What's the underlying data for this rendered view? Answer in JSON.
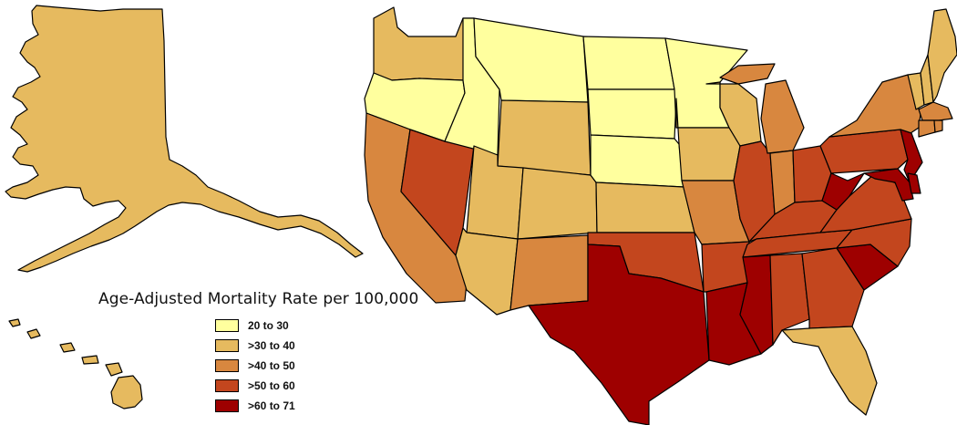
{
  "legend": {
    "title": "Age-Adjusted Mortality Rate per 100,000",
    "bins": [
      {
        "label": "20 to 30",
        "color": "#FFFF9E"
      },
      {
        "label": ">30 to 40",
        "color": "#E6BA5F"
      },
      {
        "label": ">40 to 50",
        "color": "#D8873F"
      },
      {
        "label": ">50 to 60",
        "color": "#C3461E"
      },
      {
        "label": ">60 to 71",
        "color": "#9E0000"
      }
    ]
  },
  "states": [
    {
      "id": "AK",
      "bin": 1
    },
    {
      "id": "HI",
      "bin": 1
    },
    {
      "id": "WA",
      "bin": 1
    },
    {
      "id": "OR",
      "bin": 0
    },
    {
      "id": "CA",
      "bin": 2
    },
    {
      "id": "NV",
      "bin": 3
    },
    {
      "id": "ID",
      "bin": 0
    },
    {
      "id": "MT",
      "bin": 0
    },
    {
      "id": "WY",
      "bin": 1
    },
    {
      "id": "UT",
      "bin": 1
    },
    {
      "id": "AZ",
      "bin": 1
    },
    {
      "id": "CO",
      "bin": 1
    },
    {
      "id": "NM",
      "bin": 2
    },
    {
      "id": "ND",
      "bin": 0
    },
    {
      "id": "SD",
      "bin": 0
    },
    {
      "id": "NE",
      "bin": 0
    },
    {
      "id": "KS",
      "bin": 1
    },
    {
      "id": "OK",
      "bin": 3
    },
    {
      "id": "TX",
      "bin": 4
    },
    {
      "id": "MN",
      "bin": 0
    },
    {
      "id": "IA",
      "bin": 1
    },
    {
      "id": "MO",
      "bin": 2
    },
    {
      "id": "AR",
      "bin": 3
    },
    {
      "id": "LA",
      "bin": 4
    },
    {
      "id": "WI",
      "bin": 1
    },
    {
      "id": "IL",
      "bin": 3
    },
    {
      "id": "MI",
      "bin": 2
    },
    {
      "id": "IN",
      "bin": 2
    },
    {
      "id": "OH",
      "bin": 3
    },
    {
      "id": "KY",
      "bin": 3
    },
    {
      "id": "TN",
      "bin": 3
    },
    {
      "id": "MS",
      "bin": 4
    },
    {
      "id": "AL",
      "bin": 3
    },
    {
      "id": "GA",
      "bin": 3
    },
    {
      "id": "FL",
      "bin": 1
    },
    {
      "id": "SC",
      "bin": 4
    },
    {
      "id": "NC",
      "bin": 3
    },
    {
      "id": "VA",
      "bin": 3
    },
    {
      "id": "WV",
      "bin": 4
    },
    {
      "id": "PA",
      "bin": 3
    },
    {
      "id": "NY",
      "bin": 2
    },
    {
      "id": "NJ",
      "bin": 4
    },
    {
      "id": "DE",
      "bin": 4
    },
    {
      "id": "MD",
      "bin": 4
    },
    {
      "id": "VT",
      "bin": 1
    },
    {
      "id": "NH",
      "bin": 1
    },
    {
      "id": "ME",
      "bin": 1
    },
    {
      "id": "MA",
      "bin": 2
    },
    {
      "id": "CT",
      "bin": 2
    },
    {
      "id": "RI",
      "bin": 2
    }
  ]
}
